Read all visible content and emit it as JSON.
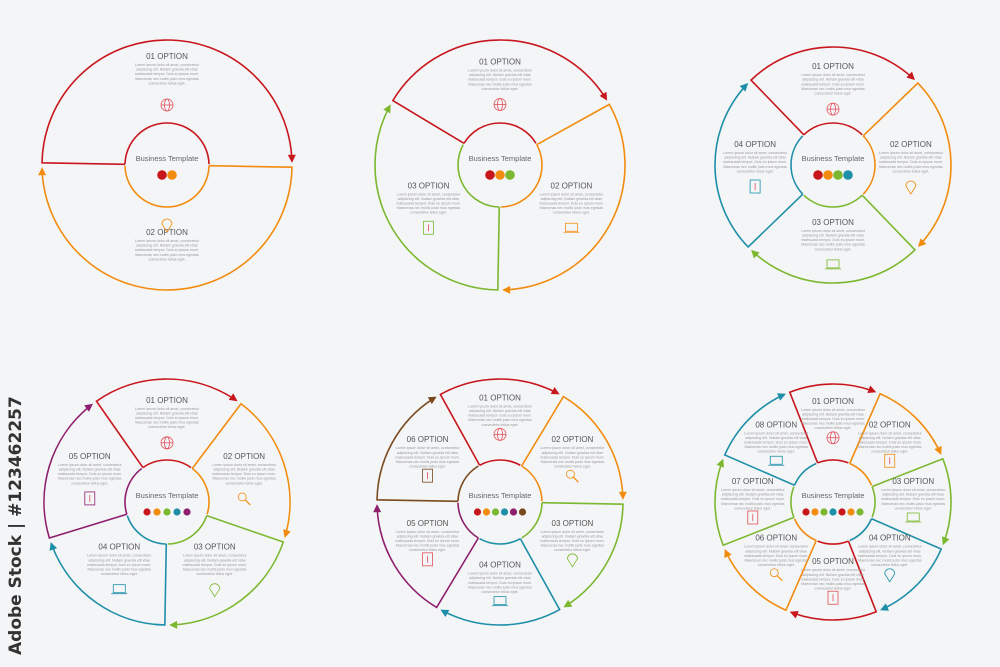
{
  "watermark": "Adobe Stock | #123462257",
  "center_title": "Business Template",
  "body_text": [
    "Lorem ipsum dolor sit amet, consectetur",
    "adipiscing elit. Nullam gravida elit vitae",
    "malesuada tempor. Duis eu ipsum mum.",
    "Maecenas nec mollis justo mus egestas",
    "consectetur tellus eget."
  ],
  "colors": {
    "red": "#c8161d",
    "orange": "#f28c0f",
    "green": "#7cb82f",
    "teal": "#1e8fa8",
    "purple": "#8e1f6e",
    "brown": "#7a4a1e",
    "icon": "#e0505a"
  },
  "diagrams": [
    {
      "options": [
        {
          "label": "01 OPTION",
          "color": "#c8161d",
          "icon": "globe-icon"
        },
        {
          "label": "02 OPTION",
          "color": "#f28c0f",
          "icon": "map-pin-icon"
        }
      ]
    },
    {
      "options": [
        {
          "label": "01 OPTION",
          "color": "#c8161d",
          "icon": "globe-icon"
        },
        {
          "label": "02 OPTION",
          "color": "#f28c0f",
          "icon": "laptop-icon"
        },
        {
          "label": "03 OPTION",
          "color": "#7cb82f",
          "icon": "document-icon"
        }
      ]
    },
    {
      "options": [
        {
          "label": "01 OPTION",
          "color": "#c8161d",
          "icon": "globe-icon"
        },
        {
          "label": "02 OPTION",
          "color": "#f28c0f",
          "icon": "map-pin-icon"
        },
        {
          "label": "03 OPTION",
          "color": "#7cb82f",
          "icon": "laptop-icon"
        },
        {
          "label": "04 OPTION",
          "color": "#1e8fa8",
          "icon": "document-icon"
        }
      ]
    },
    {
      "options": [
        {
          "label": "01 OPTION",
          "color": "#c8161d",
          "icon": "globe-icon"
        },
        {
          "label": "02 OPTION",
          "color": "#f28c0f",
          "icon": "search-icon"
        },
        {
          "label": "03 OPTION",
          "color": "#7cb82f",
          "icon": "map-pin-icon"
        },
        {
          "label": "04 OPTION",
          "color": "#1e8fa8",
          "icon": "laptop-icon"
        },
        {
          "label": "05 OPTION",
          "color": "#8e1f6e",
          "icon": "document-icon"
        }
      ]
    },
    {
      "options": [
        {
          "label": "01 OPTION",
          "color": "#c8161d",
          "icon": "globe-icon"
        },
        {
          "label": "02 OPTION",
          "color": "#f28c0f",
          "icon": "search-icon"
        },
        {
          "label": "03 OPTION",
          "color": "#7cb82f",
          "icon": "map-pin-icon"
        },
        {
          "label": "04 OPTION",
          "color": "#1e8fa8",
          "icon": "laptop-icon"
        },
        {
          "label": "05 OPTION",
          "color": "#8e1f6e",
          "icon": "home-icon"
        },
        {
          "label": "06 OPTION",
          "color": "#7a4a1e",
          "icon": "document-icon"
        }
      ]
    },
    {
      "options": [
        {
          "label": "01 OPTION",
          "color": "#c8161d",
          "icon": "globe-icon"
        },
        {
          "label": "02 OPTION",
          "color": "#f28c0f",
          "icon": "document-icon"
        },
        {
          "label": "03 OPTION",
          "color": "#7cb82f",
          "icon": "laptop-icon"
        },
        {
          "label": "04 OPTION",
          "color": "#1e8fa8",
          "icon": "map-pin-icon"
        },
        {
          "label": "05 OPTION",
          "color": "#c8161d",
          "icon": "trash-icon"
        },
        {
          "label": "06 OPTION",
          "color": "#f28c0f",
          "icon": "search-icon"
        },
        {
          "label": "07 OPTION",
          "color": "#7cb82f",
          "icon": "home-icon"
        },
        {
          "label": "08 OPTION",
          "color": "#1e8fa8",
          "icon": "monitor-icon"
        }
      ]
    }
  ]
}
